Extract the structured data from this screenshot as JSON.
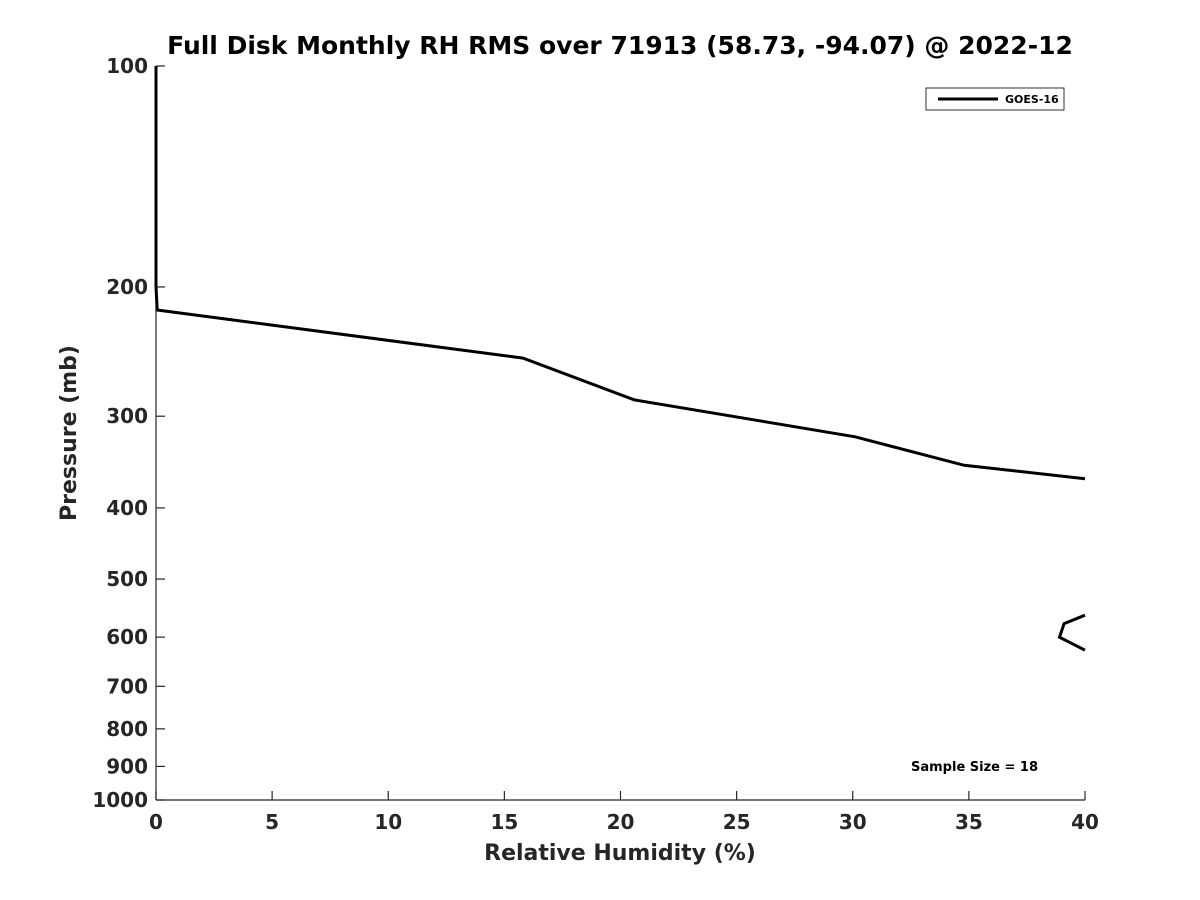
{
  "chart_data": {
    "type": "line",
    "title": "Full Disk Monthly RH RMS over 71913 (58.73, -94.07) @ 2022-12",
    "xlabel": "Relative Humidity (%)",
    "ylabel": "Pressure (mb)",
    "xlim": [
      0,
      40
    ],
    "ylim": [
      100,
      1000
    ],
    "y_scale": "log",
    "y_reversed": true,
    "grid": false,
    "x_ticks": [
      0,
      5,
      10,
      15,
      20,
      25,
      30,
      35,
      40
    ],
    "y_ticks": [
      100,
      200,
      300,
      400,
      500,
      600,
      700,
      800,
      900,
      1000
    ],
    "legend_position": "top-right",
    "series": [
      {
        "name": "GOES-16",
        "color": "#000000",
        "segments": [
          [
            {
              "x": 0.0,
              "y": 100
            },
            {
              "x": 0.0,
              "y": 150
            },
            {
              "x": 0.0,
              "y": 200
            },
            {
              "x": 0.05,
              "y": 215
            },
            {
              "x": 15.8,
              "y": 250
            },
            {
              "x": 20.6,
              "y": 285
            },
            {
              "x": 30.1,
              "y": 320
            },
            {
              "x": 34.8,
              "y": 350
            },
            {
              "x": 40.0,
              "y": 365
            }
          ],
          [
            {
              "x": 40.0,
              "y": 560
            },
            {
              "x": 39.1,
              "y": 575
            },
            {
              "x": 38.9,
              "y": 600
            },
            {
              "x": 40.0,
              "y": 625
            }
          ]
        ]
      }
    ],
    "annotations": [
      "Sample Size = 18"
    ]
  }
}
